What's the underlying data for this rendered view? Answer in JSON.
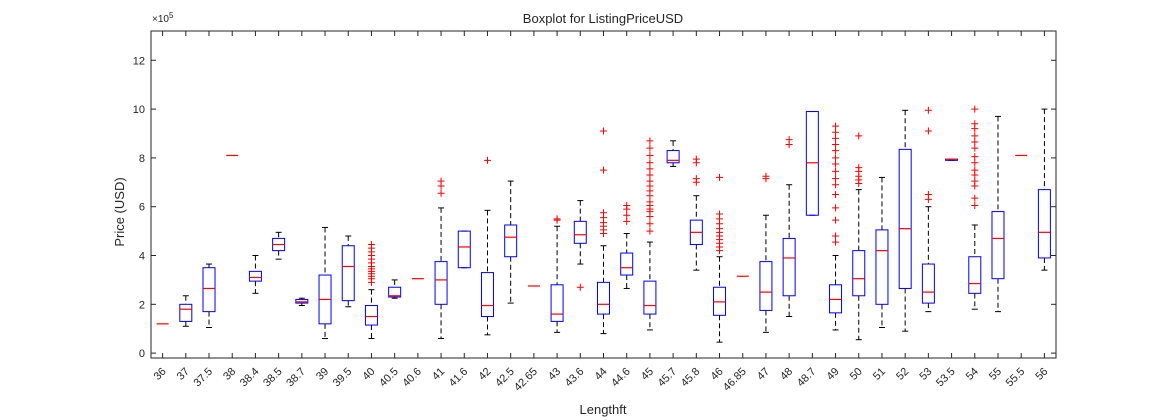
{
  "chart_data": {
    "type": "boxplot",
    "title": "Boxplot for ListingPriceUSD",
    "xlabel": "Lengthft",
    "ylabel": "Price (USD)",
    "y_exponent_label": "×10",
    "y_exponent": "5",
    "ylim": [
      -0.2,
      13.2
    ],
    "yticks": [
      0,
      2,
      4,
      6,
      8,
      10,
      12
    ],
    "grid": false,
    "colors": {
      "box": "#0000ff",
      "median": "#ff0000",
      "whisker": "#000000",
      "outlier": "#ff0000",
      "axis": "#262626"
    },
    "categories": [
      "36",
      "37",
      "37.5",
      "38",
      "38.4",
      "38.5",
      "38.7",
      "39",
      "39.5",
      "40",
      "40.5",
      "40.6",
      "41",
      "41.6",
      "42",
      "42.5",
      "42.65",
      "43",
      "43.6",
      "44",
      "44.6",
      "45",
      "45.7",
      "45.8",
      "46",
      "46.85",
      "47",
      "48",
      "48.7",
      "49",
      "50",
      "51",
      "52",
      "53",
      "53.5",
      "54",
      "55",
      "55.5",
      "56"
    ],
    "boxes": [
      {
        "wl": 1.2,
        "q1": 1.2,
        "med": 1.2,
        "q3": 1.2,
        "wh": 1.2,
        "out": []
      },
      {
        "wl": 1.1,
        "q1": 1.3,
        "med": 1.8,
        "q3": 2.0,
        "wh": 2.35,
        "out": []
      },
      {
        "wl": 1.05,
        "q1": 1.7,
        "med": 2.65,
        "q3": 3.5,
        "wh": 3.65,
        "out": []
      },
      {
        "wl": 8.1,
        "q1": 8.1,
        "med": 8.1,
        "q3": 8.1,
        "wh": 8.1,
        "out": []
      },
      {
        "wl": 2.45,
        "q1": 2.95,
        "med": 3.1,
        "q3": 3.35,
        "wh": 4.0,
        "out": []
      },
      {
        "wl": 3.85,
        "q1": 4.2,
        "med": 4.45,
        "q3": 4.7,
        "wh": 4.95,
        "out": []
      },
      {
        "wl": 1.95,
        "q1": 2.05,
        "med": 2.1,
        "q3": 2.2,
        "wh": 2.25,
        "out": []
      },
      {
        "wl": 0.6,
        "q1": 1.2,
        "med": 2.2,
        "q3": 3.2,
        "wh": 5.15,
        "out": []
      },
      {
        "wl": 1.9,
        "q1": 2.15,
        "med": 3.55,
        "q3": 4.4,
        "wh": 4.8,
        "out": []
      },
      {
        "wl": 0.6,
        "q1": 1.15,
        "med": 1.5,
        "q3": 1.95,
        "wh": 2.6,
        "out": [
          2.9,
          3.05,
          3.15,
          3.25,
          3.35,
          3.45,
          3.55,
          3.7,
          3.85,
          4.0,
          4.15,
          4.3,
          4.45
        ]
      },
      {
        "wl": 2.25,
        "q1": 2.3,
        "med": 2.35,
        "q3": 2.7,
        "wh": 3.0,
        "out": []
      },
      {
        "wl": 3.05,
        "q1": 3.05,
        "med": 3.05,
        "q3": 3.05,
        "wh": 3.05,
        "out": []
      },
      {
        "wl": 0.6,
        "q1": 2.0,
        "med": 3.0,
        "q3": 3.75,
        "wh": 5.95,
        "out": [
          6.55,
          6.85,
          7.05
        ]
      },
      {
        "wl": 3.5,
        "q1": 3.5,
        "med": 4.35,
        "q3": 5.0,
        "wh": 5.0,
        "out": []
      },
      {
        "wl": 0.75,
        "q1": 1.5,
        "med": 1.95,
        "q3": 3.3,
        "wh": 5.85,
        "out": [
          7.9
        ]
      },
      {
        "wl": 2.05,
        "q1": 3.95,
        "med": 4.75,
        "q3": 5.25,
        "wh": 7.05,
        "out": []
      },
      {
        "wl": 2.75,
        "q1": 2.75,
        "med": 2.75,
        "q3": 2.75,
        "wh": 2.75,
        "out": []
      },
      {
        "wl": 0.85,
        "q1": 1.3,
        "med": 1.6,
        "q3": 2.8,
        "wh": 5.2,
        "out": [
          5.45,
          5.5
        ]
      },
      {
        "wl": 3.65,
        "q1": 4.5,
        "med": 4.85,
        "q3": 5.4,
        "wh": 6.25,
        "out": [
          2.7
        ]
      },
      {
        "wl": 0.8,
        "q1": 1.6,
        "med": 2.0,
        "q3": 2.9,
        "wh": 4.4,
        "out": [
          4.9,
          5.05,
          5.2,
          5.35,
          5.55,
          5.75,
          7.5,
          9.1
        ]
      },
      {
        "wl": 2.65,
        "q1": 3.2,
        "med": 3.5,
        "q3": 4.1,
        "wh": 4.9,
        "out": [
          5.4,
          5.65,
          5.9,
          6.05
        ]
      },
      {
        "wl": 0.95,
        "q1": 1.6,
        "med": 1.95,
        "q3": 2.95,
        "wh": 4.55,
        "out": [
          5.0,
          5.3,
          5.6,
          5.8,
          5.9,
          6.05,
          6.2,
          6.45,
          6.65,
          6.85,
          7.05,
          7.3,
          7.55,
          7.8,
          8.1,
          8.4,
          8.7
        ]
      },
      {
        "wl": 7.65,
        "q1": 7.8,
        "med": 7.9,
        "q3": 8.3,
        "wh": 8.7,
        "out": []
      },
      {
        "wl": 3.4,
        "q1": 4.45,
        "med": 4.95,
        "q3": 5.45,
        "wh": 6.45,
        "out": [
          7.0,
          7.15,
          7.8,
          7.95
        ]
      },
      {
        "wl": 0.45,
        "q1": 1.55,
        "med": 2.1,
        "q3": 2.7,
        "wh": 3.95,
        "out": [
          4.2,
          4.35,
          4.5,
          4.65,
          4.8,
          4.95,
          5.1,
          5.3,
          5.5,
          5.7,
          7.2
        ]
      },
      {
        "wl": 3.15,
        "q1": 3.15,
        "med": 3.15,
        "q3": 3.15,
        "wh": 3.15,
        "out": []
      },
      {
        "wl": 0.85,
        "q1": 1.75,
        "med": 2.5,
        "q3": 3.75,
        "wh": 5.65,
        "out": [
          7.15,
          7.25
        ]
      },
      {
        "wl": 1.5,
        "q1": 2.35,
        "med": 3.9,
        "q3": 4.7,
        "wh": 6.9,
        "out": [
          8.55,
          8.75
        ]
      },
      {
        "wl": 5.65,
        "q1": 5.65,
        "med": 7.8,
        "q3": 9.9,
        "wh": 9.9,
        "out": []
      },
      {
        "wl": 0.95,
        "q1": 1.65,
        "med": 2.2,
        "q3": 2.8,
        "wh": 4.0,
        "out": [
          4.55,
          4.8,
          5.45,
          5.95,
          6.5,
          6.9,
          7.15,
          7.45,
          7.75,
          8.0,
          8.3,
          8.55,
          8.8,
          9.05,
          9.3
        ]
      },
      {
        "wl": 0.55,
        "q1": 2.35,
        "med": 3.05,
        "q3": 4.2,
        "wh": 6.7,
        "out": [
          6.95,
          7.1,
          7.25,
          7.45,
          7.6,
          8.9
        ]
      },
      {
        "wl": 1.05,
        "q1": 2.0,
        "med": 4.2,
        "q3": 5.05,
        "wh": 7.2,
        "out": []
      },
      {
        "wl": 0.9,
        "q1": 2.65,
        "med": 5.1,
        "q3": 8.35,
        "wh": 9.95,
        "out": []
      },
      {
        "wl": 1.7,
        "q1": 2.05,
        "med": 2.5,
        "q3": 3.65,
        "wh": 6.0,
        "out": [
          6.3,
          6.5,
          9.1,
          9.95
        ]
      },
      {
        "wl": 7.9,
        "q1": 7.9,
        "med": 7.95,
        "q3": 7.95,
        "wh": 7.95,
        "out": []
      },
      {
        "wl": 1.8,
        "q1": 2.45,
        "med": 2.85,
        "q3": 3.95,
        "wh": 5.25,
        "out": [
          6.05,
          6.35,
          6.85,
          7.05,
          7.3,
          7.5,
          7.8,
          8.05,
          8.4,
          8.65,
          8.9,
          9.2,
          9.4,
          10.0
        ]
      },
      {
        "wl": 1.7,
        "q1": 3.05,
        "med": 4.7,
        "q3": 5.8,
        "wh": 9.7,
        "out": []
      },
      {
        "wl": 8.1,
        "q1": 8.1,
        "med": 8.1,
        "q3": 8.1,
        "wh": 8.1,
        "out": []
      },
      {
        "wl": 3.4,
        "q1": 3.9,
        "med": 4.95,
        "q3": 6.7,
        "wh": 10.0,
        "out": []
      }
    ]
  }
}
